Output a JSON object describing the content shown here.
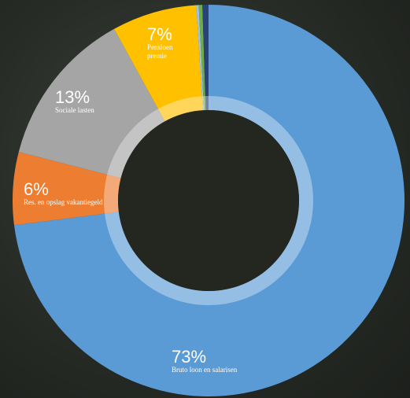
{
  "chart_data": {
    "type": "pie",
    "categories": [
      "Bruto loon en salarisen",
      "Res. en opslag vakantiegeld",
      "Sociale lasten",
      "Pensloen premie",
      null,
      null,
      null
    ],
    "values": [
      73,
      6,
      13,
      7,
      0.2,
      0.3,
      0.5
    ],
    "value_labels": [
      "73%",
      "6%",
      "13%",
      "7%",
      null,
      null,
      null
    ],
    "colors": [
      "#5b9bd5",
      "#ed7d31",
      "#a5a5a5",
      "#ffc000",
      "#9dc3e6",
      "#70ad47",
      "#264478"
    ]
  }
}
